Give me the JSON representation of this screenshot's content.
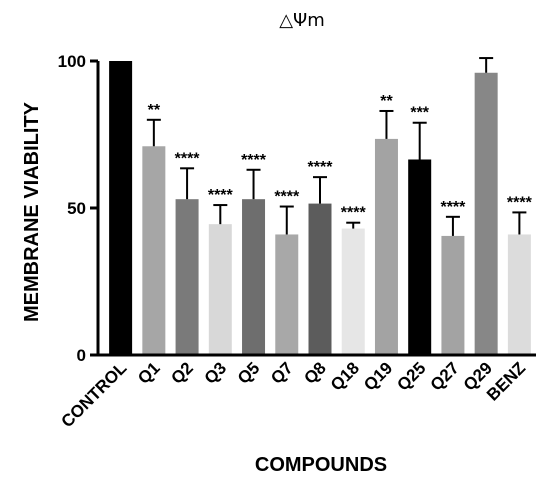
{
  "chart_data": {
    "type": "bar",
    "title": "△Ψm",
    "xlabel": "COMPOUNDS",
    "ylabel": "MEMBRANE VIABILITY",
    "ylim": [
      0,
      100
    ],
    "yticks": [
      "0",
      "50",
      "100"
    ],
    "ytick_values": [
      0,
      50,
      100
    ],
    "grid": false,
    "legend": "none",
    "categories": [
      "CONTROL",
      "Q1",
      "Q2",
      "Q3",
      "Q5",
      "Q7",
      "Q8",
      "Q18",
      "Q19",
      "Q25",
      "Q27",
      "Q29",
      "BENZ"
    ],
    "values": [
      100,
      71,
      53,
      44.5,
      53,
      41,
      51.5,
      43,
      73.5,
      66.5,
      40.5,
      96,
      41
    ],
    "errors": [
      0,
      9,
      10.5,
      6.5,
      10,
      9.5,
      9,
      2,
      9.5,
      12.5,
      6.5,
      5,
      7.5
    ],
    "significance": [
      "",
      "**",
      "****",
      "****",
      "****",
      "****",
      "****",
      "****",
      "**",
      "***",
      "****",
      "",
      "****"
    ],
    "colors": [
      "#000000",
      "#a6a6a6",
      "#7a7a7a",
      "#d8d8d8",
      "#6e6e6e",
      "#a8a8a8",
      "#5c5c5c",
      "#e6e6e6",
      "#a3a3a3",
      "#000000",
      "#a3a3a3",
      "#878787",
      "#dcdcdc"
    ]
  }
}
